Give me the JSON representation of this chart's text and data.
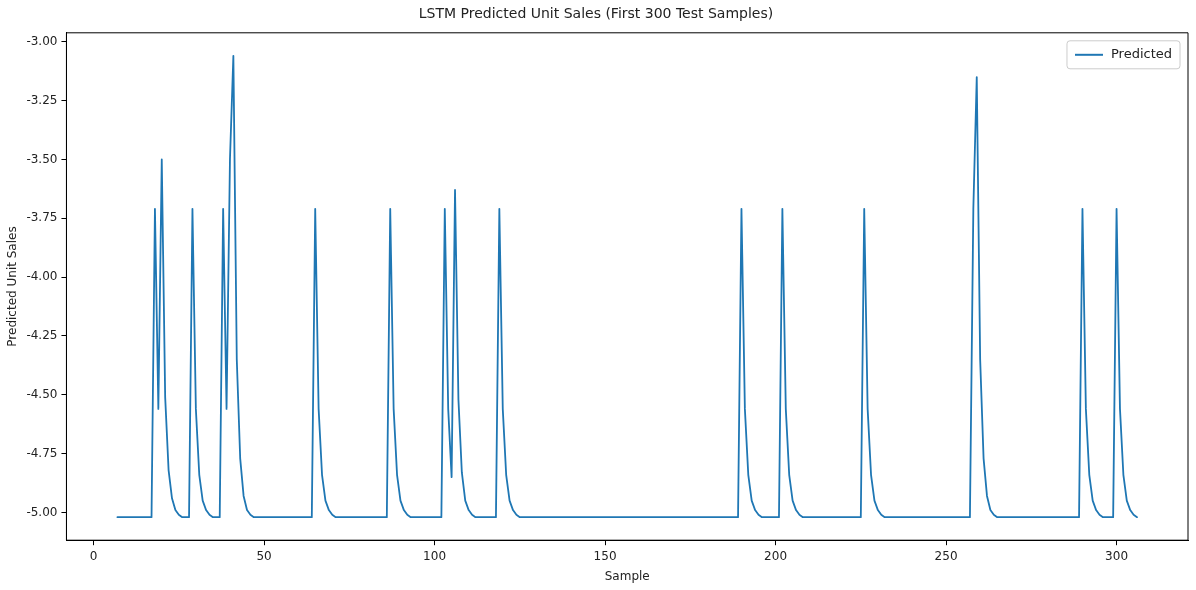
{
  "chart_data": {
    "type": "line",
    "title": "LSTM Predicted Unit Sales (First 300 Test Samples)",
    "xlabel": "Sample",
    "ylabel": "Predicted Unit Sales",
    "xlim": [
      -7.95,
      320.95
    ],
    "ylim": [
      -5.118,
      -2.962
    ],
    "xticks": [
      0,
      50,
      100,
      150,
      200,
      250,
      300
    ],
    "yticks": [
      {
        "value": -5,
        "label": "-5.00"
      },
      -4.75,
      {
        "value": -4.5,
        "label": "-4.50"
      },
      -4.25,
      {
        "value": -4,
        "label": "-4.00"
      },
      -3.75,
      {
        "value": -3.5,
        "label": "-3.50"
      },
      -3.25,
      {
        "value": -3,
        "label": "-3.00"
      }
    ],
    "grid": false,
    "legend": "top right",
    "marker": "none",
    "line_style": "solid",
    "series": [
      {
        "name": "Predicted",
        "color": "#1f77b4",
        "x": [
          7,
          17,
          18,
          19,
          20,
          21,
          22,
          23,
          24,
          25,
          26,
          28,
          29,
          30,
          31,
          32,
          33,
          34,
          35,
          37,
          38,
          39,
          40,
          41,
          42,
          43,
          44,
          45,
          46,
          47,
          64,
          65,
          66,
          67,
          68,
          69,
          70,
          71,
          86,
          87,
          88,
          89,
          90,
          91,
          92,
          93,
          102,
          103,
          104,
          105,
          106,
          107,
          108,
          109,
          110,
          111,
          112,
          118,
          119,
          120,
          121,
          122,
          123,
          124,
          125,
          189,
          190,
          191,
          192,
          193,
          194,
          195,
          196,
          201,
          202,
          203,
          204,
          205,
          206,
          207,
          208,
          225,
          226,
          227,
          228,
          229,
          230,
          231,
          232,
          257,
          258,
          259,
          260,
          261,
          262,
          263,
          264,
          265,
          289,
          290,
          291,
          292,
          293,
          294,
          295,
          296,
          299,
          300,
          301,
          302,
          303,
          304,
          305,
          306
        ],
        "values": [
          -5.02,
          -5.02,
          -3.71,
          -4.56,
          -3.5,
          -4.51,
          -4.82,
          -4.94,
          -4.99,
          -5.01,
          -5.02,
          -5.02,
          -3.71,
          -4.56,
          -4.84,
          -4.95,
          -4.99,
          -5.01,
          -5.02,
          -5.02,
          -3.71,
          -4.56,
          -3.5,
          -3.06,
          -4.35,
          -4.77,
          -4.93,
          -4.99,
          -5.01,
          -5.02,
          -5.02,
          -3.71,
          -4.56,
          -4.84,
          -4.95,
          -4.99,
          -5.01,
          -5.02,
          -5.02,
          -3.71,
          -4.56,
          -4.84,
          -4.95,
          -4.99,
          -5.01,
          -5.02,
          -5.02,
          -3.71,
          -4.56,
          -4.85,
          -3.63,
          -4.52,
          -4.83,
          -4.95,
          -4.99,
          -5.01,
          -5.02,
          -5.02,
          -3.71,
          -4.56,
          -4.84,
          -4.95,
          -4.99,
          -5.01,
          -5.02,
          -5.02,
          -3.71,
          -4.56,
          -4.84,
          -4.95,
          -4.99,
          -5.01,
          -5.02,
          -5.02,
          -3.71,
          -4.56,
          -4.84,
          -4.95,
          -4.99,
          -5.01,
          -5.02,
          -5.02,
          -3.71,
          -4.56,
          -4.84,
          -4.95,
          -4.99,
          -5.01,
          -5.02,
          -5.02,
          -3.71,
          -3.15,
          -4.35,
          -4.77,
          -4.93,
          -4.99,
          -5.01,
          -5.02,
          -5.02,
          -3.71,
          -4.56,
          -4.84,
          -4.95,
          -4.99,
          -5.01,
          -5.02,
          -5.02,
          -3.71,
          -4.56,
          -4.84,
          -4.95,
          -4.99,
          -5.01,
          -5.02
        ]
      }
    ]
  }
}
